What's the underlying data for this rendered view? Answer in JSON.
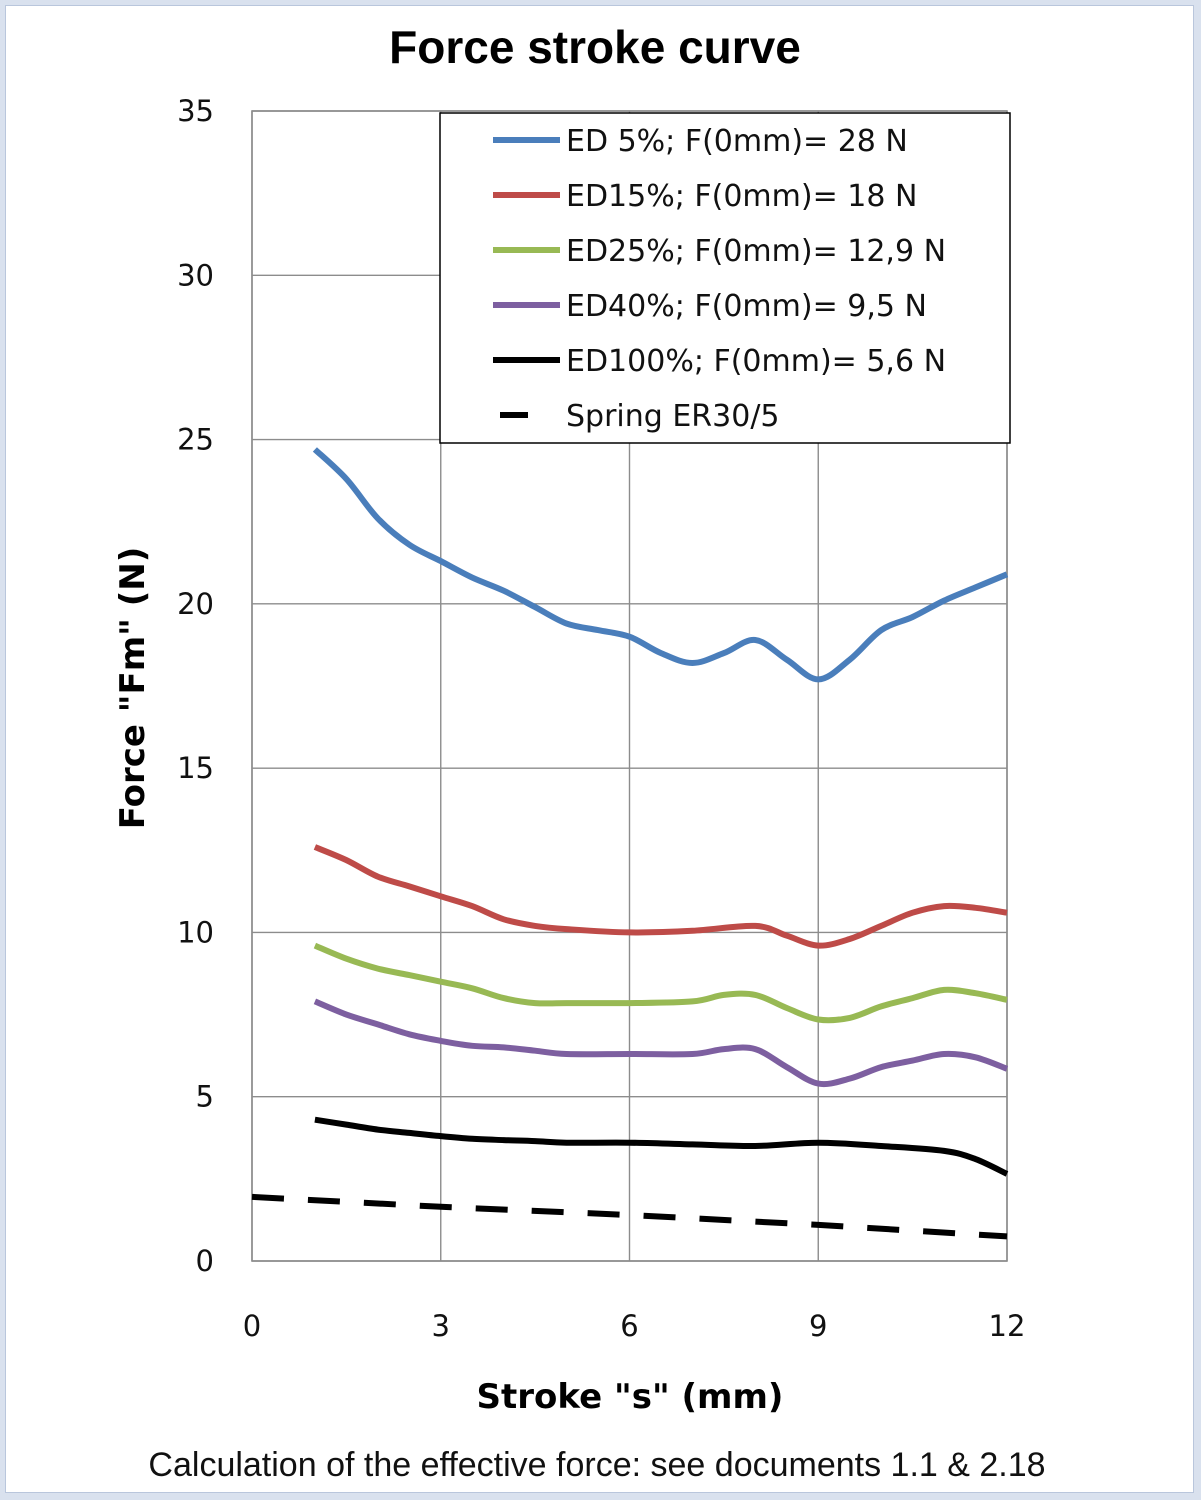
{
  "chart_data": {
    "type": "line",
    "title": "Force stroke curve",
    "xlabel": "Stroke \"s\" (mm)",
    "ylabel": "Force \"Fm\" (N)",
    "xlim": [
      0,
      12
    ],
    "ylim": [
      0,
      35
    ],
    "x_ticks": [
      "0",
      "3",
      "6",
      "9",
      "12"
    ],
    "y_ticks": [
      "0",
      "5",
      "10",
      "15",
      "20",
      "25",
      "30",
      "35"
    ],
    "grid": true,
    "legend_position": "top-right",
    "series": [
      {
        "name": "ED 5%; F(0mm)= 28 N",
        "color": "#4a7ebb",
        "style": "solid",
        "points": [
          [
            1,
            24.7
          ],
          [
            1.5,
            23.8
          ],
          [
            2,
            22.6
          ],
          [
            2.5,
            21.8
          ],
          [
            3,
            21.3
          ],
          [
            3.5,
            20.8
          ],
          [
            4,
            20.4
          ],
          [
            4.5,
            19.9
          ],
          [
            5,
            19.4
          ],
          [
            5.5,
            19.2
          ],
          [
            6,
            19.0
          ],
          [
            6.5,
            18.5
          ],
          [
            7,
            18.2
          ],
          [
            7.5,
            18.5
          ],
          [
            8,
            18.9
          ],
          [
            8.5,
            18.3
          ],
          [
            9,
            17.7
          ],
          [
            9.5,
            18.3
          ],
          [
            10,
            19.2
          ],
          [
            10.5,
            19.6
          ],
          [
            11,
            20.1
          ],
          [
            11.5,
            20.5
          ],
          [
            12,
            20.9
          ]
        ]
      },
      {
        "name": "ED15%; F(0mm)= 18 N",
        "color": "#be4b48",
        "style": "solid",
        "points": [
          [
            1,
            12.6
          ],
          [
            1.5,
            12.2
          ],
          [
            2,
            11.7
          ],
          [
            2.5,
            11.4
          ],
          [
            3,
            11.1
          ],
          [
            3.5,
            10.8
          ],
          [
            4,
            10.4
          ],
          [
            4.5,
            10.2
          ],
          [
            5,
            10.1
          ],
          [
            6,
            10.0
          ],
          [
            7,
            10.05
          ],
          [
            8,
            10.2
          ],
          [
            8.5,
            9.9
          ],
          [
            9,
            9.6
          ],
          [
            9.5,
            9.8
          ],
          [
            10,
            10.2
          ],
          [
            10.5,
            10.6
          ],
          [
            11,
            10.8
          ],
          [
            11.5,
            10.75
          ],
          [
            12,
            10.6
          ]
        ]
      },
      {
        "name": "ED25%; F(0mm)= 12,9 N",
        "color": "#98b954",
        "style": "solid",
        "points": [
          [
            1,
            9.6
          ],
          [
            1.5,
            9.2
          ],
          [
            2,
            8.9
          ],
          [
            2.5,
            8.7
          ],
          [
            3,
            8.5
          ],
          [
            3.5,
            8.3
          ],
          [
            4,
            8.0
          ],
          [
            4.5,
            7.85
          ],
          [
            5,
            7.85
          ],
          [
            6,
            7.85
          ],
          [
            7,
            7.9
          ],
          [
            7.5,
            8.1
          ],
          [
            8,
            8.1
          ],
          [
            8.5,
            7.7
          ],
          [
            9,
            7.35
          ],
          [
            9.5,
            7.4
          ],
          [
            10,
            7.75
          ],
          [
            10.5,
            8.0
          ],
          [
            11,
            8.25
          ],
          [
            11.5,
            8.15
          ],
          [
            12,
            7.95
          ]
        ]
      },
      {
        "name": "ED40%; F(0mm)= 9,5 N",
        "color": "#7d5fa0",
        "style": "solid",
        "points": [
          [
            1,
            7.9
          ],
          [
            1.5,
            7.5
          ],
          [
            2,
            7.2
          ],
          [
            2.5,
            6.9
          ],
          [
            3,
            6.7
          ],
          [
            3.5,
            6.55
          ],
          [
            4,
            6.5
          ],
          [
            4.5,
            6.4
          ],
          [
            5,
            6.3
          ],
          [
            6,
            6.3
          ],
          [
            7,
            6.3
          ],
          [
            7.5,
            6.45
          ],
          [
            8,
            6.45
          ],
          [
            8.5,
            5.9
          ],
          [
            9,
            5.4
          ],
          [
            9.5,
            5.55
          ],
          [
            10,
            5.9
          ],
          [
            10.5,
            6.1
          ],
          [
            11,
            6.3
          ],
          [
            11.5,
            6.2
          ],
          [
            12,
            5.85
          ]
        ]
      },
      {
        "name": "ED100%; F(0mm)= 5,6 N",
        "color": "#000000",
        "style": "solid",
        "points": [
          [
            1,
            4.3
          ],
          [
            1.5,
            4.15
          ],
          [
            2,
            4.0
          ],
          [
            2.5,
            3.9
          ],
          [
            3,
            3.8
          ],
          [
            3.5,
            3.72
          ],
          [
            4,
            3.68
          ],
          [
            4.5,
            3.65
          ],
          [
            5,
            3.6
          ],
          [
            6,
            3.6
          ],
          [
            7,
            3.55
          ],
          [
            8,
            3.5
          ],
          [
            9,
            3.6
          ],
          [
            10,
            3.5
          ],
          [
            11,
            3.35
          ],
          [
            11.5,
            3.1
          ],
          [
            12,
            2.65
          ]
        ]
      },
      {
        "name": "Spring  ER30/5",
        "color": "#000000",
        "style": "dashed",
        "points": [
          [
            0,
            1.95
          ],
          [
            3,
            1.65
          ],
          [
            6,
            1.4
          ],
          [
            9,
            1.1
          ],
          [
            12,
            0.75
          ]
        ]
      }
    ]
  },
  "footer_note": "Calculation of the effective force: see documents 1.1 & 2.18"
}
